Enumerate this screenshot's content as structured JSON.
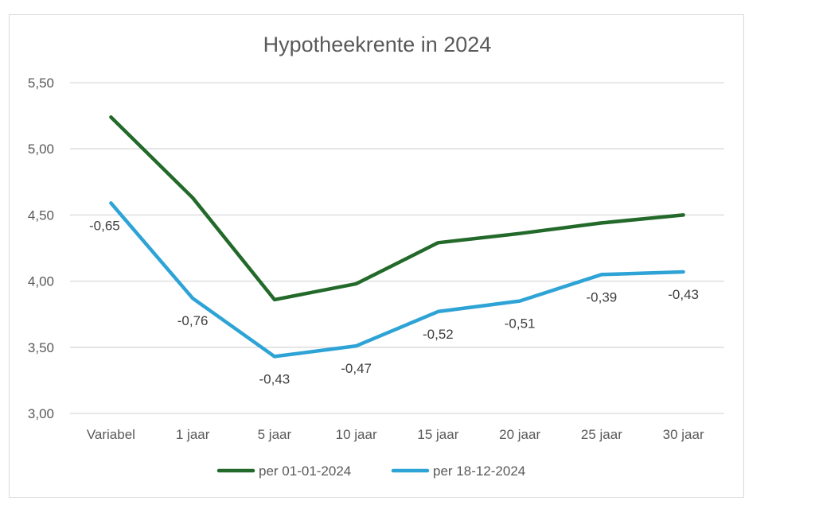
{
  "chart_data": {
    "type": "line",
    "title": "Hypotheekrente in 2024",
    "xlabel": "",
    "ylabel": "",
    "categories": [
      "Variabel",
      "1 jaar",
      "5 jaar",
      "10 jaar",
      "15 jaar",
      "20 jaar",
      "25 jaar",
      "30 jaar"
    ],
    "ylim": [
      3.0,
      5.5
    ],
    "yticks": [
      "3,00",
      "3,50",
      "4,00",
      "4,50",
      "5,00",
      "5,50"
    ],
    "grid": true,
    "legend_position": "bottom",
    "series": [
      {
        "name": "per 01-01-2024",
        "color": "#22692a",
        "values": [
          5.24,
          4.63,
          3.86,
          3.98,
          4.29,
          4.36,
          4.44,
          4.5
        ]
      },
      {
        "name": "per 18-12-2024",
        "color": "#2ea3d6",
        "values": [
          4.59,
          3.87,
          3.43,
          3.51,
          3.77,
          3.85,
          4.05,
          4.07
        ],
        "data_labels": [
          "-0,65",
          "-0,76",
          "-0,43",
          "-0,47",
          "-0,52",
          "-0,51",
          "-0,39",
          "-0,43"
        ]
      }
    ]
  }
}
